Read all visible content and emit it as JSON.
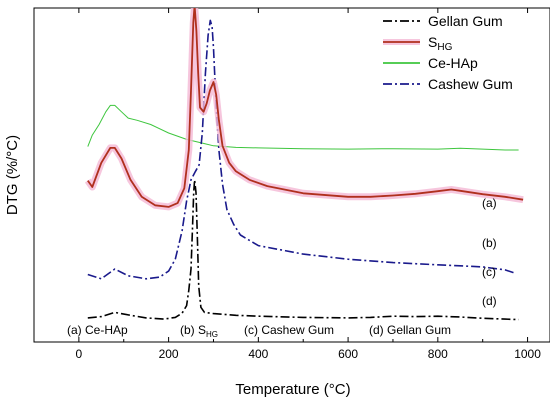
{
  "chart_data": {
    "type": "line",
    "xlabel": "Temperature (°C)",
    "ylabel": "DTG (%/°C)",
    "xlim": [
      -100,
      1050
    ],
    "x_ticks": [
      0,
      200,
      400,
      600,
      800,
      1000
    ],
    "y_ticks_shown": false,
    "grid": false,
    "legend_position": "top-right",
    "legend": [
      {
        "name": "Gellan Gum",
        "color": "#000000",
        "style": "dash-dot"
      },
      {
        "name": "S",
        "subscript": "HG",
        "color": "#b0301e",
        "style": "solid",
        "halo": "#f4b8d4"
      },
      {
        "name": "Ce-HAp",
        "color": "#3ec63e",
        "style": "solid"
      },
      {
        "name": "Cashew Gum",
        "color": "#1a1a8c",
        "style": "dash-dot"
      }
    ],
    "curve_labels": [
      "(a)",
      "(b)",
      "(c)",
      "(d)"
    ],
    "bottom_annotations": [
      {
        "prefix": "(a) Ce-HAp"
      },
      {
        "prefix": "(b) S",
        "subscript": "HG"
      },
      {
        "prefix": "(c) Cashew Gum"
      },
      {
        "prefix": "(d) Gellan Gum"
      }
    ],
    "series": [
      {
        "name": "Gellan Gum",
        "label": "(d)",
        "x": [
          20,
          50,
          80,
          110,
          150,
          190,
          215,
          230,
          240,
          245,
          250,
          253,
          256,
          258,
          261,
          264,
          267,
          272,
          280,
          300,
          350,
          400,
          500,
          600,
          650,
          700,
          750,
          800,
          850,
          900,
          950,
          980
        ],
        "y": [
          0.5,
          0.8,
          1.8,
          1.2,
          0.5,
          0.2,
          0.6,
          1.6,
          3.4,
          7,
          12,
          21,
          30,
          33,
          30,
          20,
          8,
          3,
          1.8,
          1.5,
          1.1,
          0.9,
          0.6,
          0.5,
          0.6,
          0.9,
          0.8,
          0.9,
          0.7,
          0.4,
          0.2,
          0.1
        ]
      },
      {
        "name": "S_HG",
        "label": "(b)",
        "x": [
          20,
          30,
          50,
          70,
          80,
          95,
          115,
          140,
          170,
          200,
          220,
          235,
          245,
          250,
          255,
          258,
          262,
          266,
          270,
          278,
          285,
          292,
          300,
          306,
          312,
          320,
          335,
          350,
          380,
          420,
          500,
          600,
          650,
          700,
          750,
          800,
          830,
          850,
          900,
          950,
          990
        ],
        "y": [
          32.8,
          31.3,
          37,
          40.5,
          40.5,
          38,
          33,
          29,
          27,
          26.6,
          27.5,
          31,
          40,
          54,
          70,
          74,
          68,
          58,
          50,
          49,
          51,
          54,
          56,
          53,
          47,
          41,
          37,
          35,
          33,
          31.5,
          29.8,
          29,
          29,
          29.3,
          29.7,
          30.3,
          30.7,
          30.4,
          29.6,
          29,
          28.3
        ]
      },
      {
        "name": "Ce-HAp",
        "label": "(a)",
        "x": [
          20,
          30,
          45,
          60,
          70,
          80,
          95,
          110,
          130,
          160,
          200,
          240,
          280,
          300,
          350,
          400,
          500,
          600,
          700,
          800,
          850,
          900,
          950,
          980
        ],
        "y": [
          40.8,
          43.5,
          46,
          49,
          50.5,
          50.5,
          49,
          47.5,
          47,
          46,
          44,
          42.5,
          41.5,
          41,
          40.6,
          40.5,
          40.3,
          40.2,
          40.3,
          40.2,
          40.4,
          40.2,
          40,
          40
        ]
      },
      {
        "name": "Cashew Gum",
        "label": "(c)",
        "x": [
          20,
          50,
          80,
          110,
          150,
          180,
          200,
          215,
          230,
          240,
          250,
          260,
          268,
          275,
          282,
          288,
          293,
          297,
          300,
          306,
          312,
          320,
          330,
          345,
          360,
          400,
          500,
          600,
          700,
          800,
          900,
          950,
          970
        ],
        "y": [
          10.7,
          9.7,
          12,
          10.4,
          9.7,
          10.1,
          11.5,
          14.3,
          21,
          28,
          33,
          35,
          36.5,
          44,
          58,
          67,
          70.5,
          69,
          64,
          50,
          40,
          32,
          26,
          22.5,
          20,
          17.5,
          15.5,
          14.3,
          13.5,
          13,
          12.5,
          11.8,
          11.1
        ]
      }
    ]
  }
}
